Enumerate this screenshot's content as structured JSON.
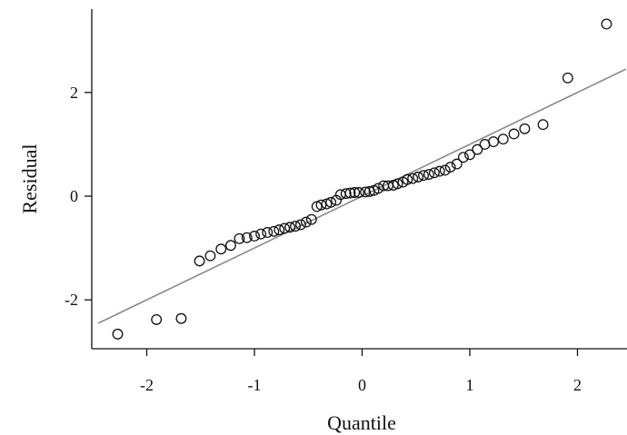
{
  "chart_data": {
    "type": "scatter",
    "xlabel": "Quantile",
    "ylabel": "Residual",
    "xlim": [
      -2.45,
      2.45
    ],
    "ylim": [
      -2.9,
      3.6
    ],
    "x_ticks": [
      -2,
      -1,
      0,
      1,
      2
    ],
    "x_tick_labels": [
      "-2",
      "-1",
      "0",
      "1",
      "2"
    ],
    "y_ticks": [
      -2,
      0,
      2
    ],
    "y_tick_labels": [
      "-2",
      "0",
      "2"
    ],
    "grid": false,
    "reference_line": {
      "intercept": 0.0,
      "slope": 1.0,
      "color": "#8a8a8a"
    },
    "marker_color": "#111111",
    "points": {
      "x": [
        -2.27,
        -1.91,
        -1.68,
        -1.51,
        -1.41,
        -1.31,
        -1.22,
        -1.14,
        -1.07,
        -1.0,
        -0.94,
        -0.88,
        -0.82,
        -0.77,
        -0.72,
        -0.67,
        -0.62,
        -0.57,
        -0.52,
        -0.47,
        -0.42,
        -0.38,
        -0.33,
        -0.29,
        -0.24,
        -0.2,
        -0.15,
        -0.11,
        -0.07,
        -0.03,
        0.03,
        0.07,
        0.11,
        0.15,
        0.2,
        0.24,
        0.29,
        0.33,
        0.38,
        0.42,
        0.47,
        0.52,
        0.57,
        0.62,
        0.67,
        0.72,
        0.77,
        0.82,
        0.88,
        0.94,
        1.0,
        1.07,
        1.14,
        1.22,
        1.31,
        1.41,
        1.51,
        1.68,
        1.91,
        2.27
      ],
      "y": [
        -2.66,
        -2.38,
        -2.36,
        -1.25,
        -1.15,
        -1.02,
        -0.95,
        -0.82,
        -0.8,
        -0.77,
        -0.73,
        -0.7,
        -0.68,
        -0.65,
        -0.62,
        -0.6,
        -0.58,
        -0.55,
        -0.5,
        -0.45,
        -0.2,
        -0.17,
        -0.15,
        -0.12,
        -0.08,
        0.03,
        0.05,
        0.06,
        0.07,
        0.07,
        0.08,
        0.09,
        0.11,
        0.15,
        0.2,
        0.2,
        0.21,
        0.24,
        0.27,
        0.32,
        0.34,
        0.37,
        0.4,
        0.42,
        0.45,
        0.48,
        0.5,
        0.56,
        0.62,
        0.75,
        0.8,
        0.9,
        1.0,
        1.05,
        1.1,
        1.2,
        1.3,
        1.38,
        2.28,
        3.32
      ]
    }
  }
}
